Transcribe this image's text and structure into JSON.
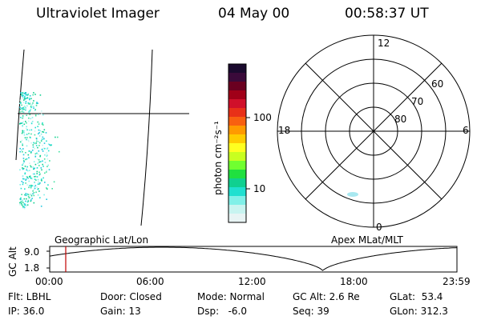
{
  "header": {
    "instrument": "Ultraviolet Imager",
    "date": "04 May 00",
    "time": "00:58:37 UT"
  },
  "colorbar": {
    "unit_label": "photon cm⁻²s⁻¹",
    "ticks": [
      "100",
      "10"
    ],
    "colors": [
      "#1a0a2e",
      "#3a0a3a",
      "#6a0020",
      "#a00018",
      "#d0102a",
      "#e83018",
      "#f86010",
      "#ff9a00",
      "#ffcc00",
      "#ffff20",
      "#c8ff20",
      "#70ff30",
      "#20e040",
      "#10d090",
      "#20e0d0",
      "#80f0e8",
      "#c8f4f0",
      "#e8f4f4"
    ]
  },
  "polar_plot": {
    "lat_labels": [
      "60",
      "70",
      "80"
    ],
    "mlt_labels": {
      "top": "12",
      "bottom": "0",
      "left": "18",
      "right": "6"
    },
    "title": "Apex MLat/MLT"
  },
  "geo_plot": {
    "title": "Geographic Lat/Lon"
  },
  "altitude_plot": {
    "axis_label": "GC Alt",
    "y_ticks": [
      "9.0",
      "1.8"
    ],
    "x_ticks": [
      "00:00",
      "06:00",
      "12:00",
      "18:00",
      "23:59"
    ],
    "marker_color": "#c00000"
  },
  "info": {
    "filter": "Flt: LBHL",
    "ip": "IP: 36.0",
    "door": "Door: Closed",
    "gain": "Gain: 13",
    "mode": "Mode: Normal",
    "dsp": "Dsp:   -6.0",
    "gc_alt": "GC Alt: 2.6 Re",
    "seq": "Seq: 39",
    "glat": "GLat:  53.4",
    "glon": "GLon: 312.3"
  }
}
